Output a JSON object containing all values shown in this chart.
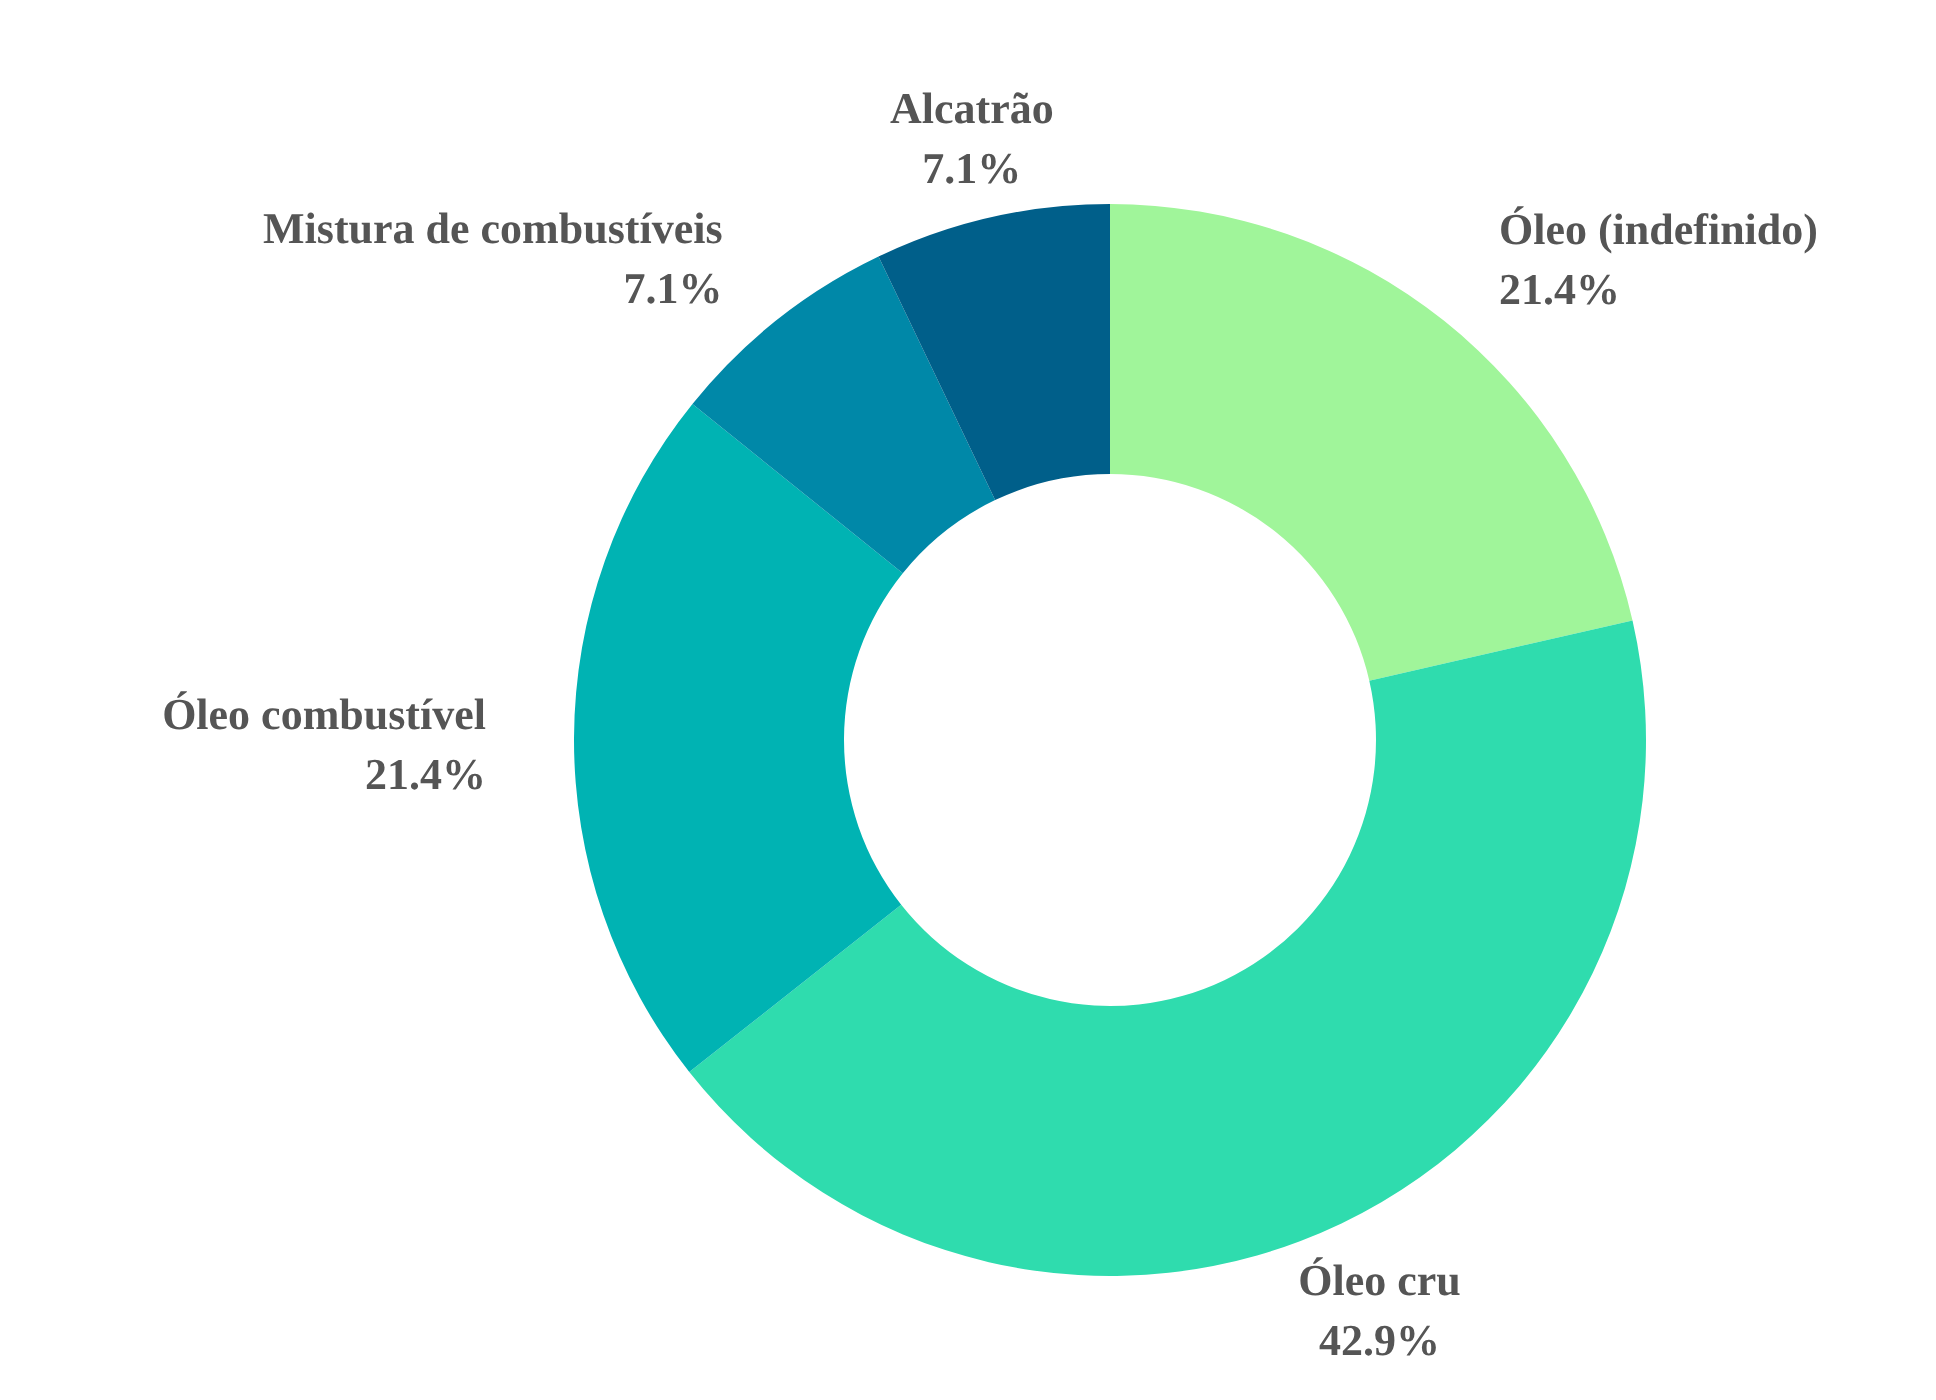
{
  "chart_data": {
    "type": "donut",
    "categories": [
      "Óleo (indefinido)",
      "Óleo cru",
      "Óleo combustível",
      "Mistura de combustíveis",
      "Alcatrão"
    ],
    "values": [
      21.4,
      42.9,
      21.4,
      7.1,
      7.1
    ],
    "colors": [
      "#a0f59a",
      "#2fdcae",
      "#00b3b3",
      "#0088a8",
      "#005f8a"
    ],
    "value_labels": [
      "21.4%",
      "42.9%",
      "21.4%",
      "7.1%",
      "7.1%"
    ]
  }
}
